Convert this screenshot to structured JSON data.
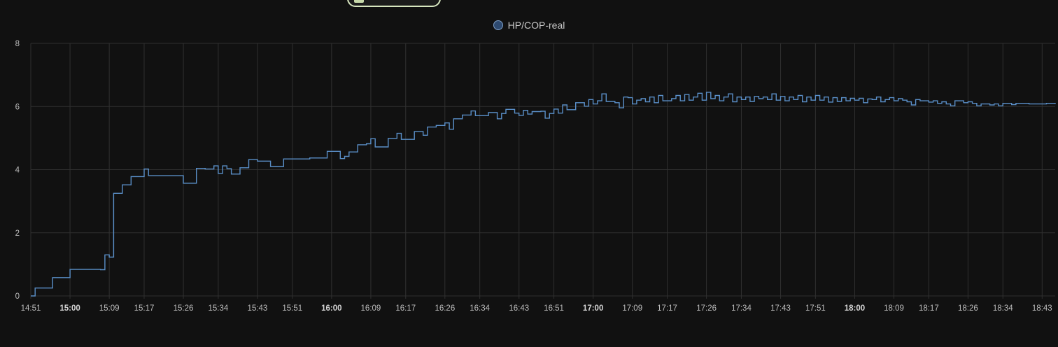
{
  "header": {
    "chip_label": ""
  },
  "legend": {
    "series_label": "HP/COP-real",
    "swatch_color": "#2e4a70",
    "swatch_border": "#7f9fc6"
  },
  "colors": {
    "background": "#111111",
    "grid": "#303030",
    "line": "#5a8fc8",
    "text": "#bdbdbd"
  },
  "chart_data": {
    "type": "line",
    "step": true,
    "title": "",
    "xlabel": "",
    "ylabel": "",
    "ylim": [
      0,
      8
    ],
    "yticks": [
      0,
      2,
      4,
      6,
      8
    ],
    "grid": true,
    "legend_position": "top-center",
    "xtick_labels": [
      {
        "label": "14:51",
        "bold": false
      },
      {
        "label": "15:00",
        "bold": true
      },
      {
        "label": "15:09",
        "bold": false
      },
      {
        "label": "15:17",
        "bold": false
      },
      {
        "label": "15:26",
        "bold": false
      },
      {
        "label": "15:34",
        "bold": false
      },
      {
        "label": "15:43",
        "bold": false
      },
      {
        "label": "15:51",
        "bold": false
      },
      {
        "label": "16:00",
        "bold": true
      },
      {
        "label": "16:09",
        "bold": false
      },
      {
        "label": "16:17",
        "bold": false
      },
      {
        "label": "16:26",
        "bold": false
      },
      {
        "label": "16:34",
        "bold": false
      },
      {
        "label": "16:43",
        "bold": false
      },
      {
        "label": "16:51",
        "bold": false
      },
      {
        "label": "17:00",
        "bold": true
      },
      {
        "label": "17:09",
        "bold": false
      },
      {
        "label": "17:17",
        "bold": false
      },
      {
        "label": "17:26",
        "bold": false
      },
      {
        "label": "17:34",
        "bold": false
      },
      {
        "label": "17:43",
        "bold": false
      },
      {
        "label": "17:51",
        "bold": false
      },
      {
        "label": "18:00",
        "bold": true
      },
      {
        "label": "18:09",
        "bold": false
      },
      {
        "label": "18:17",
        "bold": false
      },
      {
        "label": "18:26",
        "bold": false
      },
      {
        "label": "18:34",
        "bold": false
      },
      {
        "label": "18:43",
        "bold": false
      }
    ],
    "series": [
      {
        "name": "HP/COP-real",
        "points": [
          [
            "14:51",
            0.0
          ],
          [
            "14:52",
            0.25
          ],
          [
            "14:56",
            0.58
          ],
          [
            "15:00",
            0.84
          ],
          [
            "15:07",
            0.83
          ],
          [
            "15:08",
            1.3
          ],
          [
            "15:09",
            1.23
          ],
          [
            "15:10",
            3.25
          ],
          [
            "15:12",
            3.52
          ],
          [
            "15:14",
            3.78
          ],
          [
            "15:17",
            4.02
          ],
          [
            "15:18",
            3.81
          ],
          [
            "15:26",
            3.57
          ],
          [
            "15:29",
            4.04
          ],
          [
            "15:31",
            4.02
          ],
          [
            "15:33",
            4.12
          ],
          [
            "15:34",
            3.88
          ],
          [
            "15:35",
            4.12
          ],
          [
            "15:36",
            4.03
          ],
          [
            "15:37",
            3.86
          ],
          [
            "15:39",
            4.06
          ],
          [
            "15:41",
            4.32
          ],
          [
            "15:43",
            4.27
          ],
          [
            "15:46",
            4.1
          ],
          [
            "15:49",
            4.34
          ],
          [
            "15:55",
            4.37
          ],
          [
            "15:59",
            4.58
          ],
          [
            "16:02",
            4.35
          ],
          [
            "16:03",
            4.42
          ],
          [
            "16:04",
            4.56
          ],
          [
            "16:06",
            4.79
          ],
          [
            "16:08",
            4.82
          ],
          [
            "16:09",
            4.98
          ],
          [
            "16:10",
            4.72
          ],
          [
            "16:13",
            4.99
          ],
          [
            "16:15",
            5.15
          ],
          [
            "16:16",
            4.96
          ],
          [
            "16:19",
            5.21
          ],
          [
            "16:21",
            5.09
          ],
          [
            "16:22",
            5.35
          ],
          [
            "16:24",
            5.4
          ],
          [
            "16:26",
            5.48
          ],
          [
            "16:27",
            5.28
          ],
          [
            "16:28",
            5.61
          ],
          [
            "16:30",
            5.73
          ],
          [
            "16:32",
            5.86
          ],
          [
            "16:33",
            5.71
          ],
          [
            "16:36",
            5.81
          ],
          [
            "16:38",
            5.61
          ],
          [
            "16:39",
            5.78
          ],
          [
            "16:40",
            5.91
          ],
          [
            "16:42",
            5.79
          ],
          [
            "16:43",
            5.72
          ],
          [
            "16:44",
            5.88
          ],
          [
            "16:45",
            5.76
          ],
          [
            "16:46",
            5.84
          ],
          [
            "16:48",
            5.85
          ],
          [
            "16:49",
            5.63
          ],
          [
            "16:50",
            5.78
          ],
          [
            "16:51",
            5.92
          ],
          [
            "16:52",
            5.79
          ],
          [
            "16:53",
            6.05
          ],
          [
            "16:54",
            5.9
          ],
          [
            "16:56",
            6.12
          ],
          [
            "16:58",
            6.01
          ],
          [
            "16:59",
            6.22
          ],
          [
            "17:00",
            6.08
          ],
          [
            "17:01",
            6.18
          ],
          [
            "17:02",
            6.4
          ],
          [
            "17:03",
            6.16
          ],
          [
            "17:05",
            6.12
          ],
          [
            "17:06",
            5.96
          ],
          [
            "17:07",
            6.3
          ],
          [
            "17:08",
            6.28
          ],
          [
            "17:09",
            6.08
          ],
          [
            "17:10",
            6.2
          ],
          [
            "17:11",
            6.25
          ],
          [
            "17:12",
            6.15
          ],
          [
            "17:13",
            6.3
          ],
          [
            "17:14",
            6.12
          ],
          [
            "17:15",
            6.35
          ],
          [
            "17:16",
            6.18
          ],
          [
            "17:18",
            6.25
          ],
          [
            "17:19",
            6.35
          ],
          [
            "17:20",
            6.18
          ],
          [
            "17:21",
            6.38
          ],
          [
            "17:22",
            6.2
          ],
          [
            "17:23",
            6.3
          ],
          [
            "17:24",
            6.42
          ],
          [
            "17:25",
            6.2
          ],
          [
            "17:26",
            6.45
          ],
          [
            "17:27",
            6.25
          ],
          [
            "17:28",
            6.35
          ],
          [
            "17:29",
            6.18
          ],
          [
            "17:30",
            6.3
          ],
          [
            "17:31",
            6.4
          ],
          [
            "17:32",
            6.15
          ],
          [
            "17:33",
            6.3
          ],
          [
            "17:34",
            6.22
          ],
          [
            "17:35",
            6.3
          ],
          [
            "17:36",
            6.16
          ],
          [
            "17:37",
            6.32
          ],
          [
            "17:38",
            6.25
          ],
          [
            "17:39",
            6.3
          ],
          [
            "17:40",
            6.22
          ],
          [
            "17:41",
            6.4
          ],
          [
            "17:42",
            6.2
          ],
          [
            "17:43",
            6.32
          ],
          [
            "17:44",
            6.18
          ],
          [
            "17:45",
            6.3
          ],
          [
            "17:46",
            6.22
          ],
          [
            "17:47",
            6.35
          ],
          [
            "17:48",
            6.15
          ],
          [
            "17:49",
            6.3
          ],
          [
            "17:50",
            6.2
          ],
          [
            "17:51",
            6.35
          ],
          [
            "17:52",
            6.2
          ],
          [
            "17:53",
            6.3
          ],
          [
            "17:54",
            6.14
          ],
          [
            "17:55",
            6.28
          ],
          [
            "17:56",
            6.16
          ],
          [
            "17:57",
            6.28
          ],
          [
            "17:58",
            6.18
          ],
          [
            "17:59",
            6.26
          ],
          [
            "18:00",
            6.2
          ],
          [
            "18:01",
            6.26
          ],
          [
            "18:02",
            6.12
          ],
          [
            "18:03",
            6.24
          ],
          [
            "18:04",
            6.22
          ],
          [
            "18:05",
            6.3
          ],
          [
            "18:06",
            6.15
          ],
          [
            "18:07",
            6.22
          ],
          [
            "18:08",
            6.28
          ],
          [
            "18:09",
            6.18
          ],
          [
            "18:10",
            6.25
          ],
          [
            "18:11",
            6.2
          ],
          [
            "18:12",
            6.15
          ],
          [
            "18:13",
            6.05
          ],
          [
            "18:14",
            6.22
          ],
          [
            "18:15",
            6.18
          ],
          [
            "18:17",
            6.14
          ],
          [
            "18:18",
            6.18
          ],
          [
            "18:19",
            6.1
          ],
          [
            "18:20",
            6.15
          ],
          [
            "18:21",
            6.08
          ],
          [
            "18:22",
            6.02
          ],
          [
            "18:23",
            6.18
          ],
          [
            "18:25",
            6.12
          ],
          [
            "18:26",
            6.15
          ],
          [
            "18:27",
            6.1
          ],
          [
            "18:28",
            6.02
          ],
          [
            "18:29",
            6.08
          ],
          [
            "18:31",
            6.05
          ],
          [
            "18:32",
            6.08
          ],
          [
            "18:33",
            6.02
          ],
          [
            "18:34",
            6.1
          ],
          [
            "18:36",
            6.06
          ],
          [
            "18:37",
            6.1
          ],
          [
            "18:40",
            6.08
          ],
          [
            "18:43",
            6.08
          ],
          [
            "18:44",
            6.1
          ],
          [
            "18:46",
            6.08
          ]
        ]
      }
    ]
  }
}
